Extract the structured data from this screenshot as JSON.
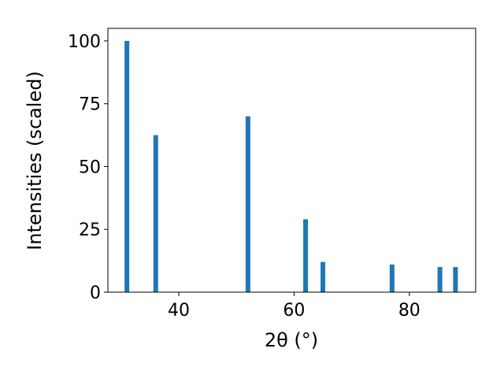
{
  "chart_data": {
    "type": "bar",
    "x": [
      31,
      36,
      52,
      62,
      65,
      77,
      85.3,
      88
    ],
    "values": [
      100,
      62.5,
      70,
      29,
      12,
      11,
      10,
      10
    ],
    "color": "#1f77b4",
    "xlabel": "2θ (°)",
    "ylabel": "Intensities (scaled)",
    "xlim": [
      27.7,
      91.5
    ],
    "xticks": [
      40,
      60,
      80
    ],
    "ylim": [
      0,
      105
    ],
    "yticks": [
      0,
      25,
      50,
      75,
      100
    ]
  }
}
